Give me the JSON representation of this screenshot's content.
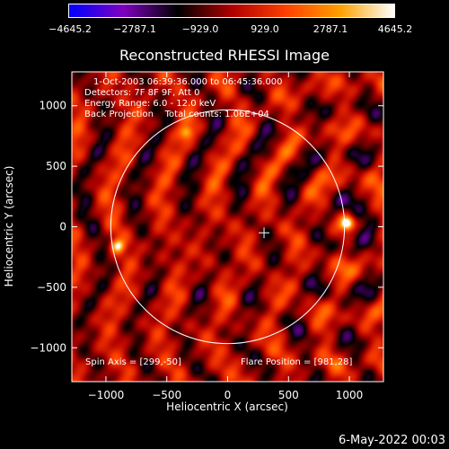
{
  "chart_data": {
    "type": "heatmap",
    "title": "Reconstructed RHESSI Image",
    "xlabel": "Heliocentric X (arcsec)",
    "ylabel": "Heliocentric Y (arcsec)",
    "xlim": [
      -1280,
      1280
    ],
    "ylim": [
      -1280,
      1280
    ],
    "xticks": [
      -1000,
      -500,
      0,
      500,
      1000
    ],
    "xtick_labels": [
      "−1000",
      "−500",
      "0",
      "500",
      "1000"
    ],
    "yticks": [
      -1000,
      -500,
      0,
      500,
      1000
    ],
    "ytick_labels": [
      "−1000",
      "−500",
      "0",
      "500",
      "1000"
    ],
    "colorbar": {
      "min": -4645.2,
      "max": 4645.2,
      "tick_values": [
        -4645.2,
        -2787.1,
        -929.0,
        929.0,
        2787.1,
        4645.2
      ],
      "tick_labels": [
        "−4645.2",
        "−2787.1",
        "−929.0",
        "929.0",
        "2787.1",
        "4645.2"
      ],
      "colors": [
        "#0000ff",
        "#8000c0",
        "#000000",
        "#b00000",
        "#ff4000",
        "#ffa000",
        "#ffffff"
      ]
    },
    "solar_disk": {
      "center": [
        0,
        0
      ],
      "radius": 960
    },
    "cross_marker": [
      299,
      -50
    ],
    "sources": [
      {
        "x": 981,
        "y": 28,
        "intensity": 4645.2
      },
      {
        "x": -905,
        "y": -160,
        "intensity": 3900
      },
      {
        "x": -340,
        "y": 780,
        "intensity": 2600
      }
    ]
  },
  "annotations": {
    "line1": "1-Oct-2003 06:39:36.000 to 06:45:36.000",
    "line2": "Detectors: 7F 8F 9F, Att 0",
    "line3": "Energy Range: 6.0 - 12.0 keV",
    "line4": "Back Projection    Total counts: 1.06E+04",
    "spin_axis": "Spin Axis = [299,-50]",
    "flare_position": "Flare Position = [981,28]"
  },
  "footer_date": "6-May-2022 00:03"
}
